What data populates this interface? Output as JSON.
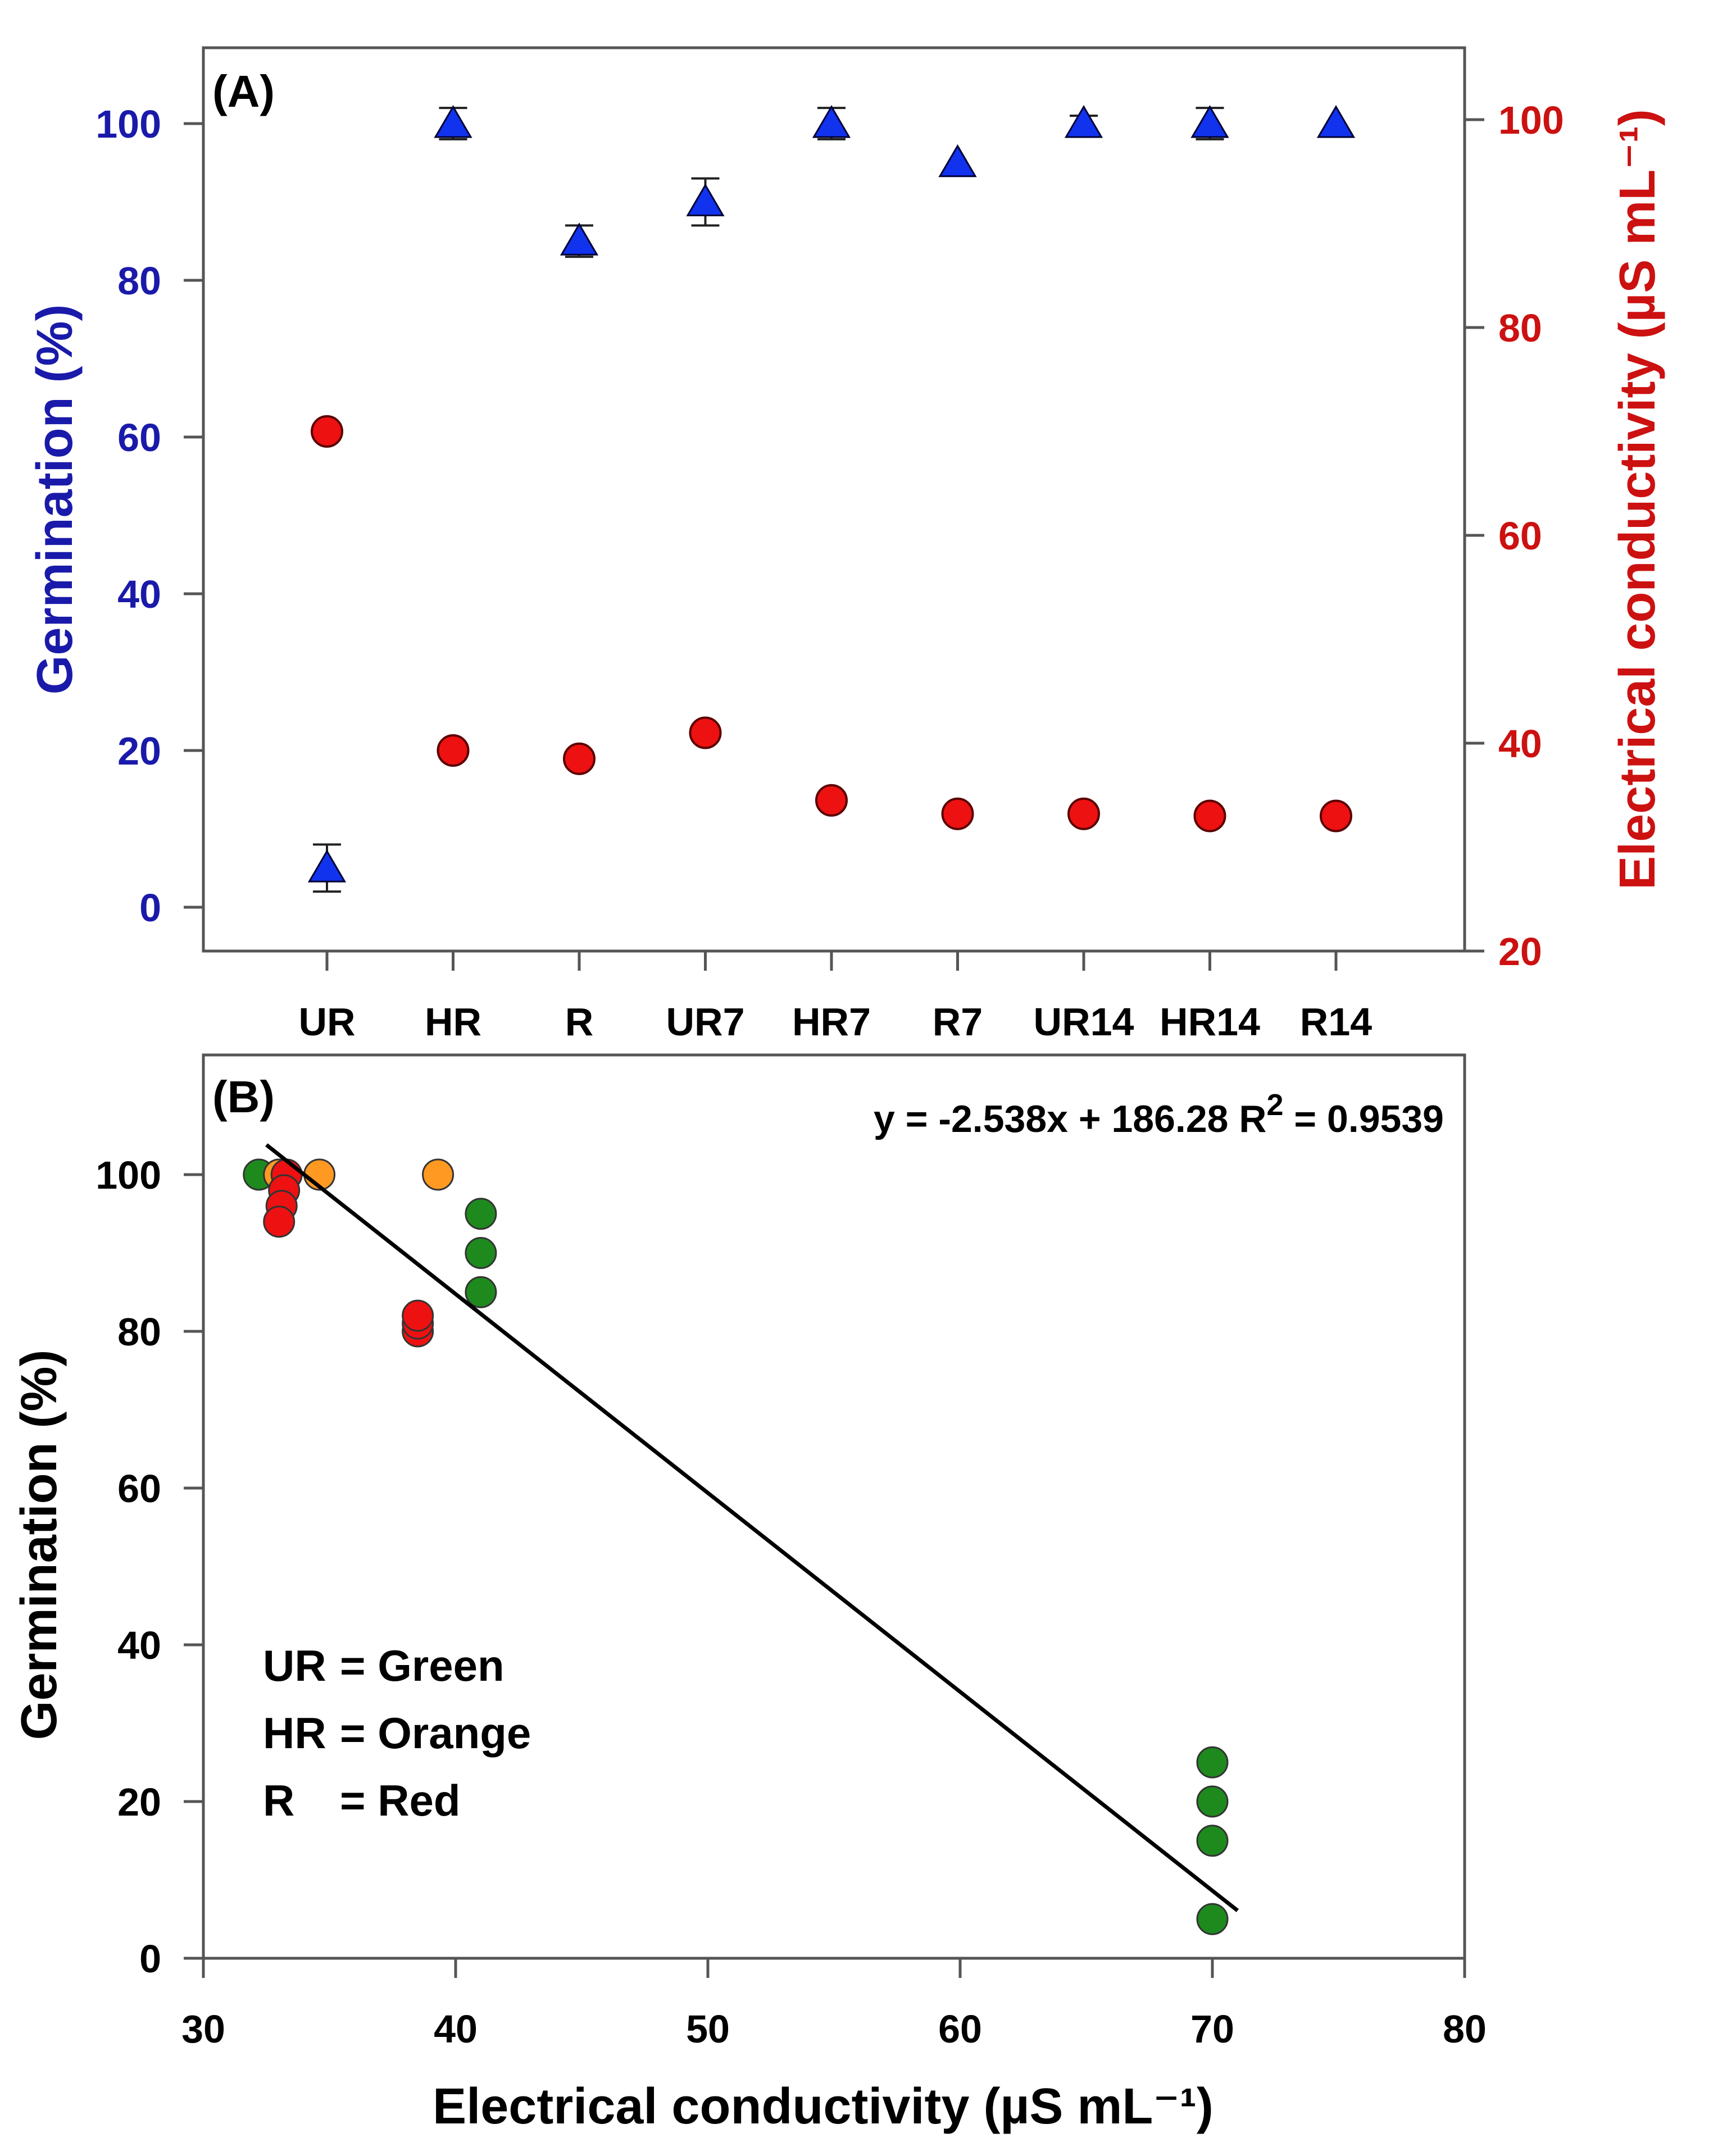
{
  "chart_data": [
    {
      "panel": "(A)",
      "type": "scatter",
      "categories": [
        "UR",
        "HR",
        "R",
        "UR7",
        "HR7",
        "R7",
        "UR14",
        "HR14",
        "R14"
      ],
      "y_left": {
        "label": "Germination (%)",
        "ticks": [
          0,
          20,
          40,
          60,
          80,
          100
        ],
        "range": [
          -5,
          110
        ],
        "color": "#1a1aaa"
      },
      "y_right": {
        "label": "Electrical conductivity (µS mL⁻¹)",
        "ticks": [
          20,
          40,
          60,
          80,
          100
        ],
        "range": [
          20,
          107
        ],
        "color": "#cc1111"
      },
      "series": [
        {
          "name": "Germination",
          "axis": "left",
          "marker": "triangle",
          "color": "#1133ee",
          "values": [
            5,
            100,
            85,
            90,
            100,
            95,
            100,
            100,
            100
          ],
          "errors": [
            3,
            2,
            2,
            3,
            2,
            0,
            1,
            2,
            0
          ]
        },
        {
          "name": "Electrical conductivity",
          "axis": "right",
          "marker": "circle",
          "color": "#ee1111",
          "values": [
            70,
            39.3,
            38.5,
            41,
            34.5,
            33.2,
            33.2,
            33,
            33
          ]
        }
      ]
    },
    {
      "panel": "(B)",
      "type": "scatter",
      "xlabel": "Electrical conductivity (µS mL⁻¹)",
      "ylabel": "Germination (%)",
      "xlim": [
        30,
        80
      ],
      "ylim": [
        0,
        110
      ],
      "xticks": [
        30,
        40,
        50,
        60,
        70,
        80
      ],
      "yticks": [
        0,
        20,
        40,
        60,
        80,
        100
      ],
      "equation": "y = -2.538x + 186.28 R",
      "equation_sup": "2",
      "equation_tail": " = 0.9539",
      "regression": {
        "slope": -2.538,
        "intercept": 186.28,
        "x_range": [
          32.5,
          71
        ]
      },
      "legend": [
        {
          "key": "UR",
          "sep": "= Green"
        },
        {
          "key": "HR",
          "sep": "= Orange"
        },
        {
          "key": "R",
          "sep": "= Red"
        }
      ],
      "groups": [
        {
          "name": "UR",
          "color": "#1e8a1e",
          "points": [
            [
              32.2,
              100
            ],
            [
              41,
              95
            ],
            [
              41,
              90
            ],
            [
              41,
              85
            ],
            [
              70,
              25
            ],
            [
              70,
              20
            ],
            [
              70,
              15
            ],
            [
              70,
              5
            ]
          ]
        },
        {
          "name": "HR",
          "color": "#ff9922",
          "points": [
            [
              33,
              100
            ],
            [
              34.6,
              100
            ],
            [
              39.3,
              100
            ]
          ]
        },
        {
          "name": "R",
          "color": "#ee1111",
          "points": [
            [
              33.3,
              100
            ],
            [
              33.2,
              98
            ],
            [
              33.1,
              96
            ],
            [
              33.0,
              94
            ],
            [
              38.5,
              80
            ],
            [
              38.5,
              81
            ],
            [
              38.5,
              82
            ]
          ]
        }
      ]
    }
  ]
}
